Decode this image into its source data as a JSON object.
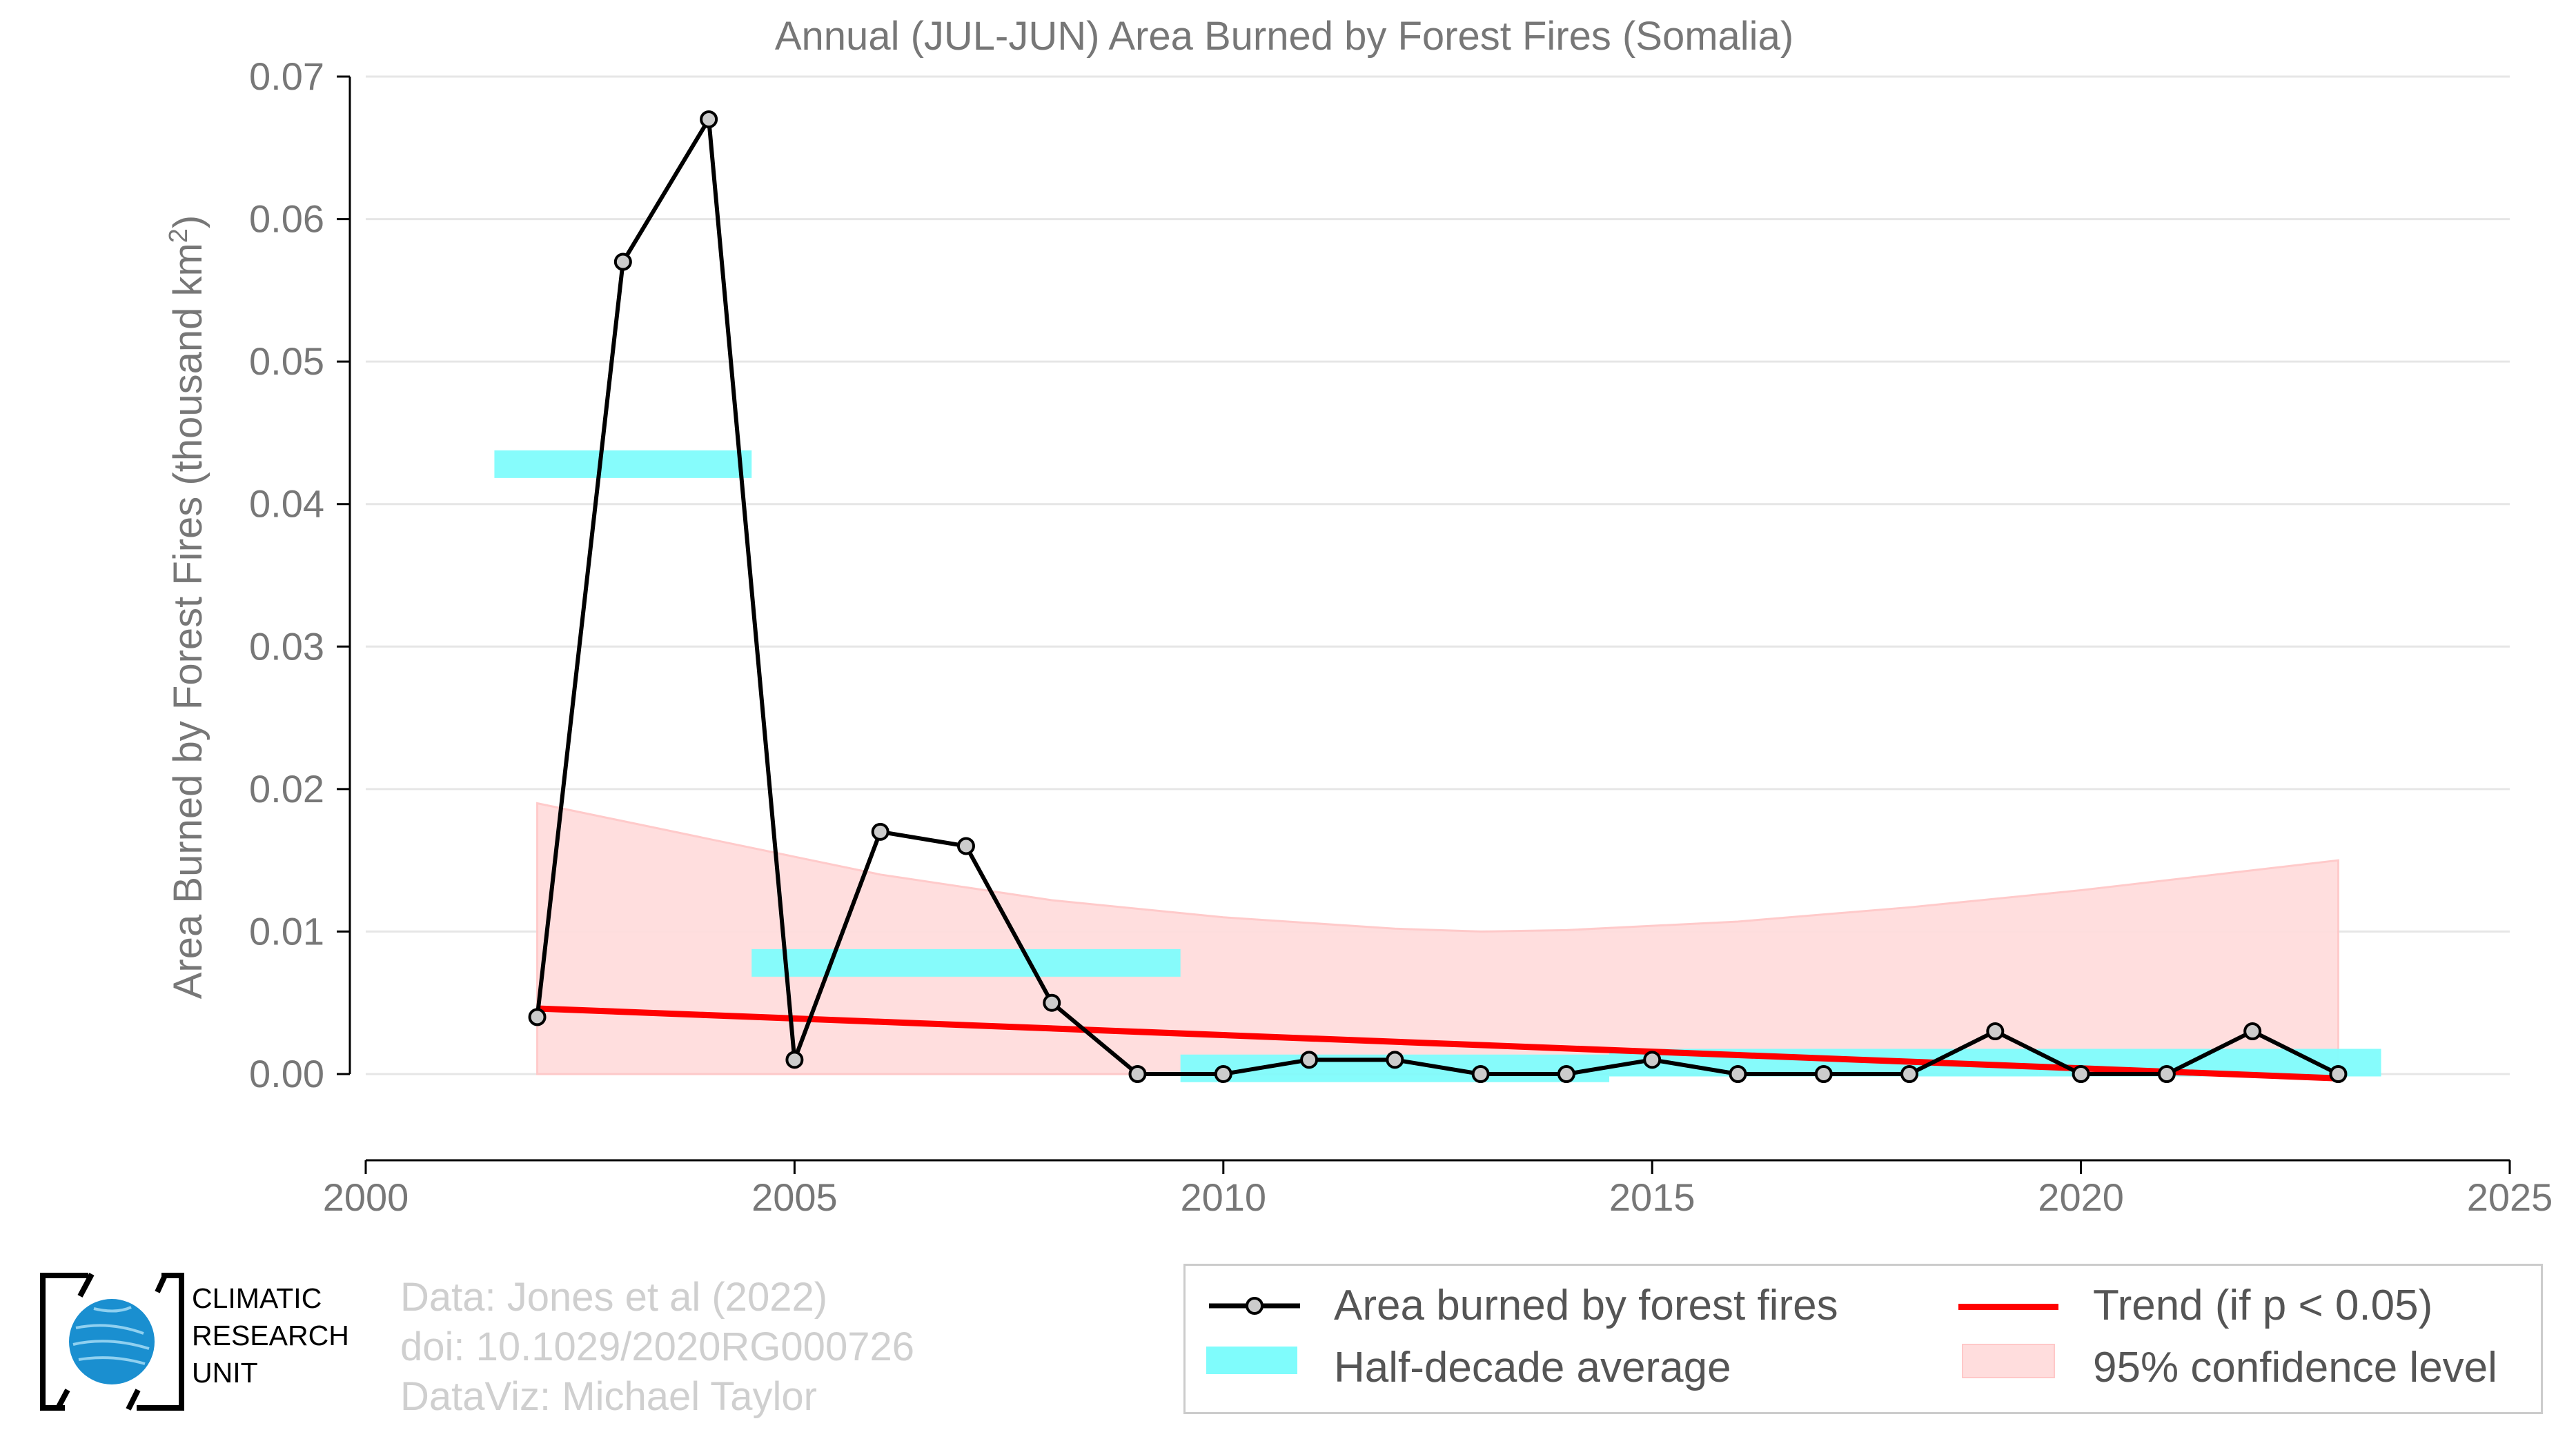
{
  "chart_data": {
    "type": "line",
    "title": "Annual (JUL-JUN) Area Burned by Forest Fires (Somalia)",
    "ylabel": "Area Burned by Forest Fires (thousand km²)",
    "ylabel_main": "Area Burned by Forest Fires (thousand km",
    "ylabel_sup": "2",
    "ylabel_end": ")",
    "xlim": [
      2000,
      2025
    ],
    "ylim": [
      0,
      0.07
    ],
    "x_ticks": [
      2000,
      2005,
      2010,
      2015,
      2020,
      2025
    ],
    "y_ticks": [
      "0.00",
      "0.01",
      "0.02",
      "0.03",
      "0.04",
      "0.05",
      "0.06",
      "0.07"
    ],
    "grid": "horizontal",
    "series": [
      {
        "name": "Area burned by forest fires",
        "color": "#000000",
        "x": [
          2002,
          2003,
          2004,
          2005,
          2006,
          2007,
          2008,
          2009,
          2010,
          2011,
          2012,
          2013,
          2014,
          2015,
          2016,
          2017,
          2018,
          2019,
          2020,
          2021,
          2022,
          2023
        ],
        "y": [
          0.004,
          0.057,
          0.067,
          0.001,
          0.017,
          0.016,
          0.005,
          0.0,
          0.0,
          0.001,
          0.001,
          0.0,
          0.0,
          0.001,
          0.0,
          0.0,
          0.0,
          0.003,
          0.0,
          0.0,
          0.003,
          0.0
        ]
      }
    ],
    "half_decade_average": {
      "name": "Half-decade average",
      "color": "#7ffcfc",
      "segments": [
        {
          "x_start": 2001.5,
          "x_end": 2004.5,
          "y": 0.0428
        },
        {
          "x_start": 2004.5,
          "x_end": 2009.5,
          "y": 0.0078
        },
        {
          "x_start": 2009.5,
          "x_end": 2014.5,
          "y": 0.0004
        },
        {
          "x_start": 2014.5,
          "x_end": 2019.5,
          "y": 0.0008
        },
        {
          "x_start": 2019.5,
          "x_end": 2023.5,
          "y": 0.0008
        }
      ]
    },
    "trend": {
      "name": "Trend (if p < 0.05)",
      "color": "#ff0000",
      "x": [
        2002,
        2023
      ],
      "y": [
        0.0046,
        -0.0003
      ]
    },
    "confidence": {
      "name": "95% confidence level",
      "color": "#ffdddd",
      "x": [
        2002,
        2004,
        2006,
        2008,
        2010,
        2012,
        2013,
        2014,
        2016,
        2018,
        2020,
        2022,
        2023
      ],
      "upper": [
        0.019,
        0.0165,
        0.014,
        0.0122,
        0.011,
        0.0102,
        0.01,
        0.0101,
        0.0107,
        0.0117,
        0.0129,
        0.0143,
        0.015
      ],
      "lower": [
        0,
        0,
        0,
        0,
        0,
        0,
        0,
        0,
        0,
        0,
        0,
        0,
        0
      ]
    }
  },
  "credits": {
    "line1": "Data: Jones et al (2022)",
    "line2": "doi: 10.1029/2020RG000726",
    "line3": "DataViz: Michael Taylor"
  },
  "logo": {
    "line1": "CLIMATIC",
    "line2": "RESEARCH",
    "line3": "UNIT"
  },
  "legend": {
    "series_label": "Area burned by forest fires",
    "average_label": "Half-decade average",
    "trend_label": "Trend (if p < 0.05)",
    "confidence_label": "95% confidence level"
  }
}
